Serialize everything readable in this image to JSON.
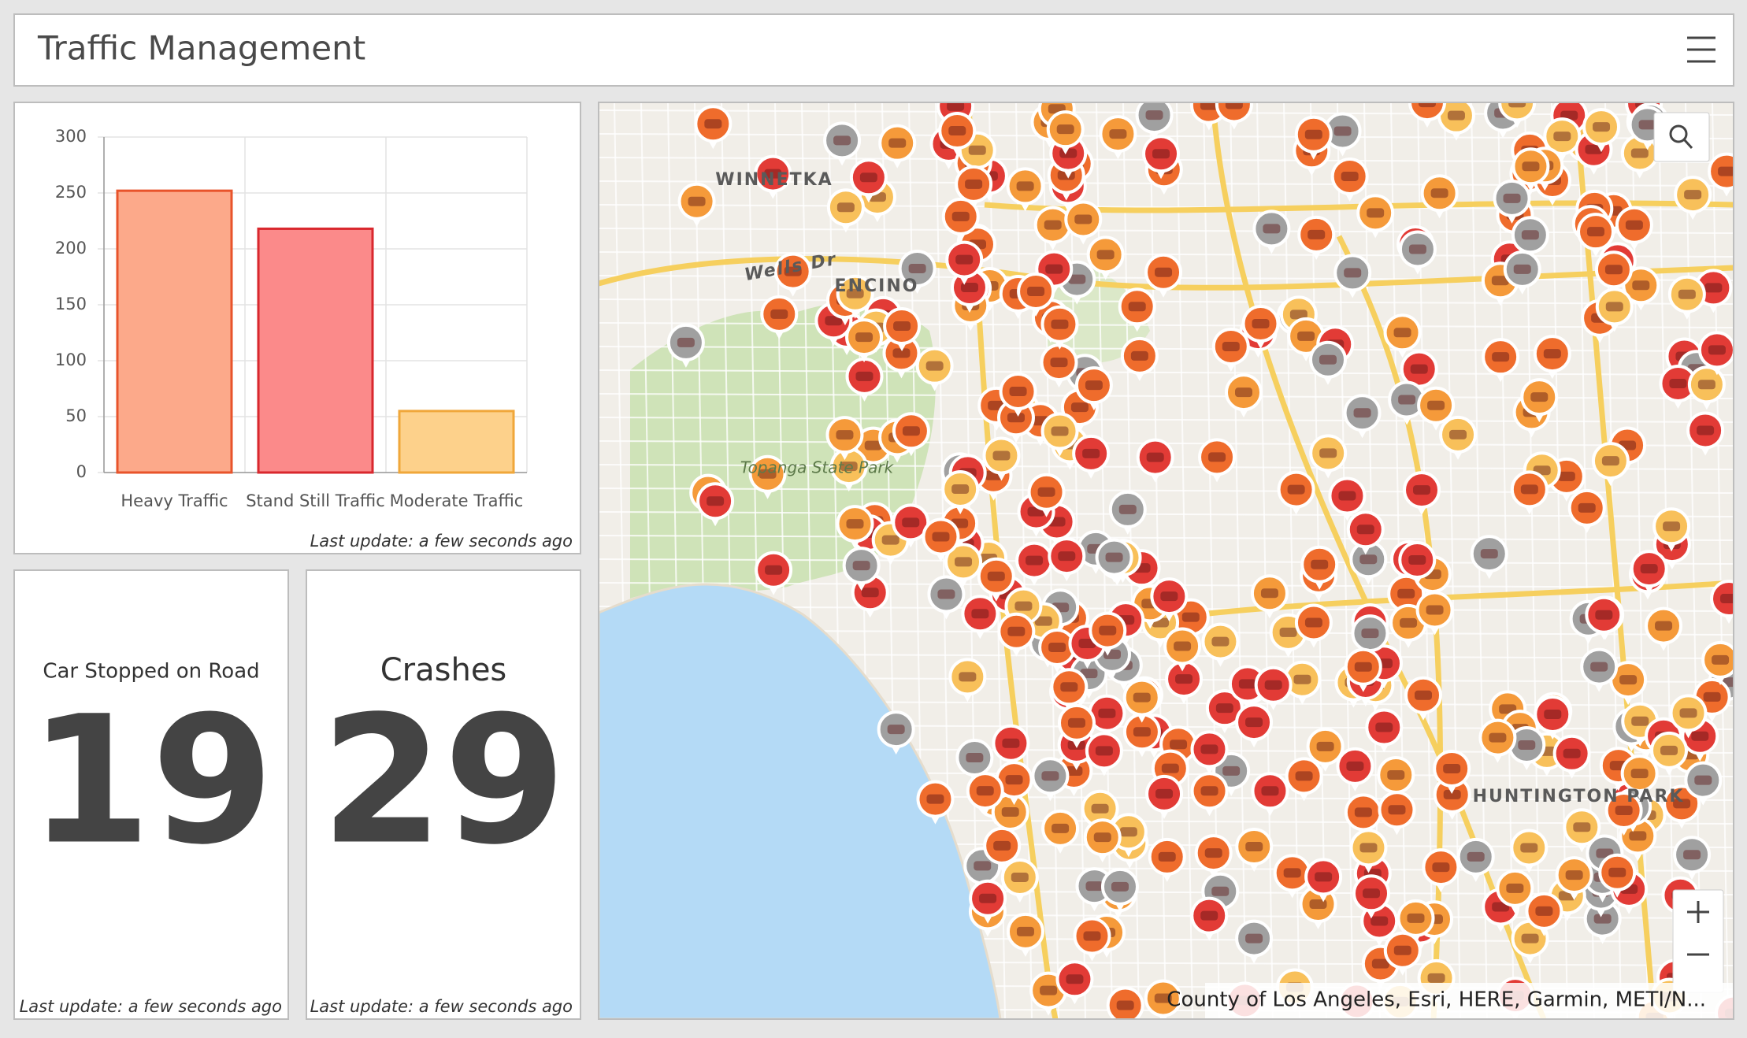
{
  "header": {
    "title": "Traffic Management"
  },
  "chart_data": {
    "type": "bar",
    "categories": [
      "Heavy Traffic",
      "Stand Still Traffic",
      "Moderate Traffic"
    ],
    "values": [
      252,
      218,
      55
    ],
    "colors": [
      "#fca98a",
      "#fb8a8a",
      "#fdd18b"
    ],
    "border_colors": [
      "#e8542b",
      "#d9282e",
      "#f0a73a"
    ],
    "ylim": [
      0,
      300
    ],
    "yticks": [
      0,
      50,
      100,
      150,
      200,
      250,
      300
    ],
    "grid": true,
    "footer": "Last update: a few seconds ago"
  },
  "indicators": [
    {
      "title": "Car Stopped on Road",
      "value": "19",
      "footer": "Last update: a few seconds ago"
    },
    {
      "title": "Crashes",
      "value": "29",
      "footer": "Last update: a few seconds ago"
    }
  ],
  "map": {
    "labels": [
      "WINNETKA",
      "Wells Dr",
      "ENCINO",
      "Topanga State Park",
      "HUNTINGTON PARK"
    ],
    "attribution": "County of Los Angeles, Esri, HERE, Garmin, METI/N..."
  }
}
